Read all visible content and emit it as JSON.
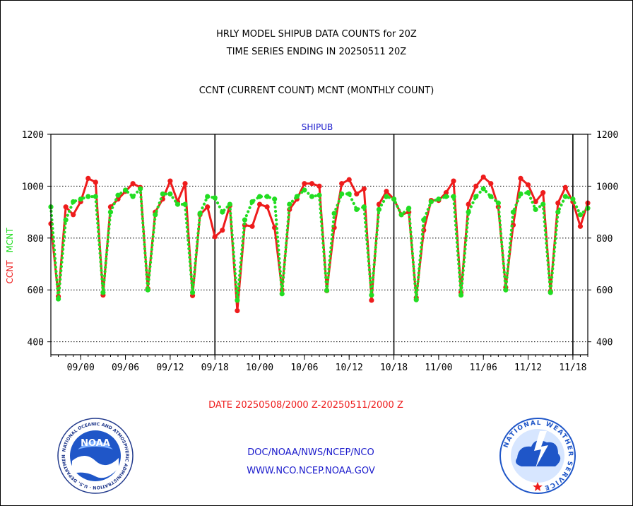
{
  "header": {
    "title_line1": "HRLY MODEL SHIPUB DATA COUNTS for 20Z",
    "title_line2": "TIME SERIES ENDING IN 20250511 20Z",
    "subtitle": "CCNT (CURRENT COUNT) MCNT (MONTHLY COUNT)"
  },
  "footer": {
    "date_range": "DATE 20250508/2000 Z-20250511/2000 Z",
    "org_line": "DOC/NOAA/NWS/NCEP/NCO",
    "url_line": "WWW.NCO.NCEP.NOAA.GOV"
  },
  "logos": {
    "left_inner": "NOAA",
    "left_ring": "NATIONAL OCEANIC AND ATMOSPHERIC ADMINISTRATION · U.S. DEPARTMENT OF COMMERCE",
    "right_ring": "NATIONAL WEATHER SERVICE"
  },
  "colors": {
    "ccnt": "#ee1c1c",
    "mcnt": "#22dd22",
    "title_blue": "#1a1acc",
    "date_red": "#ee1c1c"
  },
  "chart_data": {
    "type": "line",
    "plot_label": "SHIPUB",
    "ylabel_left_1": "CCNT",
    "ylabel_left_2": "MCNT",
    "ylim": [
      350,
      1200
    ],
    "yticks": [
      400,
      600,
      800,
      1000,
      1200
    ],
    "grid": "horizontal dotted at 400, 600, 800, 1000",
    "x_tick_labels": [
      "09/00",
      "09/06",
      "09/12",
      "09/18",
      "10/00",
      "10/06",
      "10/12",
      "10/18",
      "11/00",
      "11/06",
      "11/12",
      "11/18"
    ],
    "x_start_hour": 0,
    "x_end_hour": 72,
    "x_label_hours": [
      4,
      10,
      16,
      22,
      28,
      34,
      40,
      46,
      52,
      58,
      64,
      70
    ],
    "day_separator_hours": [
      22,
      46,
      70
    ],
    "series": [
      {
        "name": "CCNT",
        "hours": [
          0,
          1,
          2,
          3,
          4,
          5,
          6,
          7,
          8,
          9,
          10,
          11,
          12,
          13,
          14,
          15,
          16,
          17,
          18,
          19,
          20,
          21,
          22,
          23,
          24,
          25,
          26,
          27,
          28,
          29,
          30,
          31,
          32,
          33,
          34,
          35,
          36,
          37,
          38,
          39,
          40,
          41,
          42,
          43,
          44,
          45,
          46,
          47,
          48,
          49,
          50,
          51,
          52,
          53,
          54,
          55,
          56,
          57,
          58,
          59,
          60,
          61,
          62,
          63,
          64,
          65,
          66,
          67,
          68,
          69,
          70,
          71,
          72
        ],
        "values": [
          855,
          575,
          920,
          890,
          940,
          1030,
          1015,
          580,
          920,
          950,
          980,
          1010,
          995,
          605,
          900,
          950,
          1020,
          940,
          1010,
          578,
          890,
          920,
          805,
          830,
          925,
          520,
          850,
          845,
          930,
          920,
          840,
          600,
          910,
          950,
          1010,
          1010,
          1000,
          597,
          840,
          1010,
          1025,
          970,
          990,
          560,
          930,
          980,
          950,
          890,
          900,
          570,
          830,
          945,
          945,
          975,
          1020,
          590,
          930,
          1000,
          1035,
          1010,
          920,
          610,
          850,
          1030,
          1005,
          940,
          975,
          595,
          935,
          995,
          940,
          845,
          935
        ]
      },
      {
        "name": "MCNT",
        "hours": [
          0,
          1,
          2,
          3,
          4,
          5,
          6,
          7,
          8,
          9,
          10,
          11,
          12,
          13,
          14,
          15,
          16,
          17,
          18,
          19,
          20,
          21,
          22,
          23,
          24,
          25,
          26,
          27,
          28,
          29,
          30,
          31,
          32,
          33,
          34,
          35,
          36,
          37,
          38,
          39,
          40,
          41,
          42,
          43,
          44,
          45,
          46,
          47,
          48,
          49,
          50,
          51,
          52,
          53,
          54,
          55,
          56,
          57,
          58,
          59,
          60,
          61,
          62,
          63,
          64,
          65,
          66,
          67,
          68,
          69,
          70,
          71,
          72
        ],
        "values": [
          920,
          565,
          870,
          940,
          950,
          960,
          960,
          590,
          900,
          965,
          985,
          960,
          990,
          600,
          890,
          970,
          970,
          930,
          930,
          590,
          895,
          960,
          955,
          900,
          930,
          560,
          870,
          940,
          960,
          960,
          950,
          585,
          930,
          960,
          985,
          960,
          965,
          598,
          895,
          970,
          970,
          910,
          920,
          580,
          910,
          960,
          950,
          890,
          915,
          562,
          870,
          940,
          950,
          960,
          960,
          580,
          900,
          960,
          990,
          960,
          935,
          600,
          900,
          970,
          975,
          910,
          930,
          590,
          900,
          960,
          950,
          890,
          915
        ]
      }
    ]
  }
}
